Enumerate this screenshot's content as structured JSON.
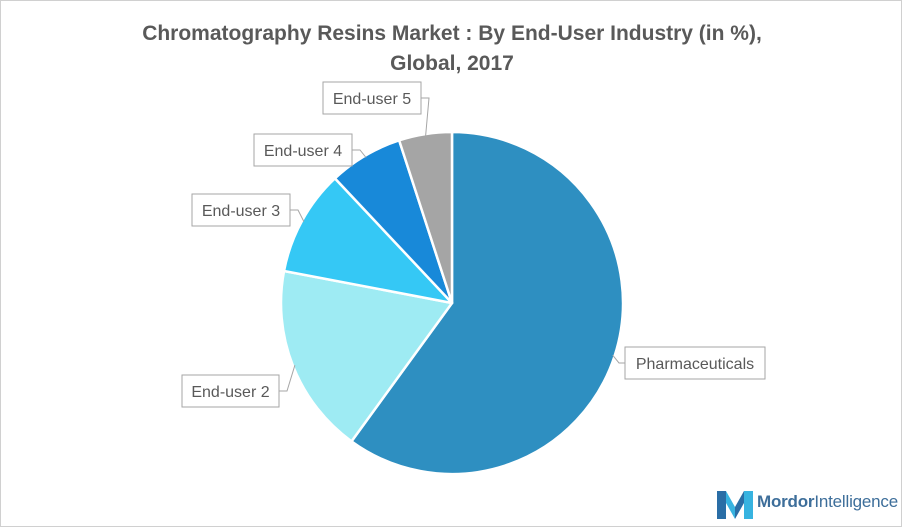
{
  "chart_data": {
    "type": "pie",
    "title_line1": "Chromatography Resins Market  : By End-User Industry (in %),",
    "title_line2": "Global, 2017",
    "slices": [
      {
        "label": "Pharmaceuticals",
        "value": 60,
        "color": "#2e8fc1"
      },
      {
        "label": "End-user 2",
        "value": 18,
        "color": "#9eebf3"
      },
      {
        "label": "End-user 3",
        "value": 10,
        "color": "#35c8f5"
      },
      {
        "label": "End-user 4",
        "value": 7,
        "color": "#1889d9"
      },
      {
        "label": "End-user 5",
        "value": 5,
        "color": "#a5a5a5"
      }
    ],
    "start_angle_deg": 0,
    "direction": "clockwise"
  },
  "brand": {
    "name_part1": "Mordor",
    "name_part2": "Intelligence",
    "logo_colors": [
      "#2a6ea6",
      "#37b3e0"
    ]
  }
}
